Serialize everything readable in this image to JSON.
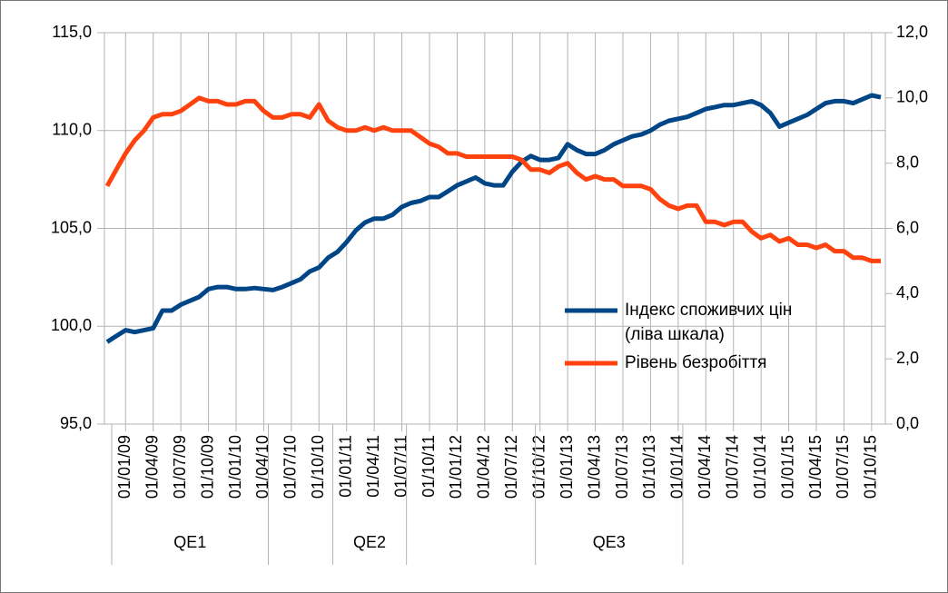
{
  "chart_data": {
    "type": "line",
    "categories": [
      null,
      null,
      "01/01/09",
      null,
      null,
      "01/04/09",
      null,
      null,
      "01/07/09",
      null,
      null,
      "01/10/09",
      null,
      null,
      "01/01/10",
      null,
      null,
      "01/04/10",
      null,
      null,
      "01/07/10",
      null,
      null,
      "01/10/10",
      null,
      null,
      "01/01/11",
      null,
      null,
      "01/04/11",
      null,
      null,
      "01/07/11",
      null,
      null,
      "01/10/11",
      null,
      null,
      "01/01/12",
      null,
      null,
      "01/04/12",
      null,
      null,
      "01/07/12",
      null,
      null,
      "01/10/12",
      null,
      null,
      "01/01/13",
      null,
      null,
      "01/04/13",
      null,
      null,
      "01/07/13",
      null,
      null,
      "01/10/13",
      null,
      null,
      "01/01/14",
      null,
      null,
      "01/04/14",
      null,
      null,
      "01/07/14",
      null,
      null,
      "01/10/14",
      null,
      null,
      "01/01/15",
      null,
      null,
      "01/04/15",
      null,
      null,
      "01/07/15",
      null,
      null,
      "01/10/15",
      null
    ],
    "groups": [
      {
        "label": "QE1",
        "from": 1,
        "to": 17
      },
      {
        "label": "QE2",
        "from": 25,
        "to": 32
      },
      {
        "label": "QE3",
        "from": 47,
        "to": 62
      }
    ],
    "series": [
      {
        "name": "Індекс споживчих цін (ліва шкала)",
        "color": "#004586",
        "axis": "y",
        "values": [
          99.2,
          99.5,
          99.8,
          99.7,
          99.8,
          99.9,
          100.8,
          100.8,
          101.1,
          101.3,
          101.5,
          101.9,
          102.0,
          102.0,
          101.9,
          101.9,
          101.95,
          101.9,
          101.85,
          102.0,
          102.2,
          102.4,
          102.8,
          103.0,
          103.5,
          103.8,
          104.3,
          104.9,
          105.3,
          105.5,
          105.5,
          105.7,
          106.1,
          106.3,
          106.4,
          106.6,
          106.6,
          106.9,
          107.2,
          107.4,
          107.6,
          107.3,
          107.2,
          107.2,
          107.9,
          108.4,
          108.7,
          108.5,
          108.5,
          108.6,
          109.3,
          109.0,
          108.8,
          108.8,
          109.0,
          109.3,
          109.5,
          109.7,
          109.8,
          110.0,
          110.3,
          110.5,
          110.6,
          110.7,
          110.9,
          111.1,
          111.2,
          111.3,
          111.3,
          111.4,
          111.5,
          111.3,
          110.9,
          110.2,
          110.4,
          110.6,
          110.8,
          111.1,
          111.4,
          111.5,
          111.5,
          111.4,
          111.6,
          111.8,
          111.7
        ]
      },
      {
        "name": "Рівень безробіття",
        "color": "#ff420e",
        "axis": "y2",
        "values": [
          7.3,
          7.8,
          8.3,
          8.7,
          9.0,
          9.4,
          9.5,
          9.5,
          9.6,
          9.8,
          10.0,
          9.9,
          9.9,
          9.8,
          9.8,
          9.9,
          9.9,
          9.6,
          9.4,
          9.4,
          9.5,
          9.5,
          9.4,
          9.8,
          9.3,
          9.1,
          9.0,
          9.0,
          9.1,
          9.0,
          9.1,
          9.0,
          9.0,
          9.0,
          8.8,
          8.6,
          8.5,
          8.3,
          8.3,
          8.2,
          8.2,
          8.2,
          8.2,
          8.2,
          8.2,
          8.1,
          7.8,
          7.8,
          7.7,
          7.9,
          8.0,
          7.7,
          7.5,
          7.6,
          7.5,
          7.5,
          7.3,
          7.3,
          7.3,
          7.2,
          6.9,
          6.7,
          6.6,
          6.7,
          6.7,
          6.2,
          6.2,
          6.1,
          6.2,
          6.2,
          5.9,
          5.7,
          5.8,
          5.6,
          5.7,
          5.5,
          5.5,
          5.4,
          5.5,
          5.3,
          5.3,
          5.1,
          5.1,
          5.0,
          5.0
        ]
      }
    ],
    "ylim": [
      95,
      115
    ],
    "yticks": [
      {
        "value": 95,
        "label": "95,0"
      },
      {
        "value": 100,
        "label": "100,0"
      },
      {
        "value": 105,
        "label": "105,0"
      },
      {
        "value": 110,
        "label": "110,0"
      },
      {
        "value": 115,
        "label": "115,0"
      }
    ],
    "y2lim": [
      0,
      12
    ],
    "y2ticks": [
      {
        "value": 0,
        "label": "0,0"
      },
      {
        "value": 2,
        "label": "2,0"
      },
      {
        "value": 4,
        "label": "4,0"
      },
      {
        "value": 6,
        "label": "6,0"
      },
      {
        "value": 8,
        "label": "8,0"
      },
      {
        "value": 10,
        "label": "10,0"
      },
      {
        "value": 12,
        "label": "12,0"
      }
    ],
    "grid": true
  }
}
